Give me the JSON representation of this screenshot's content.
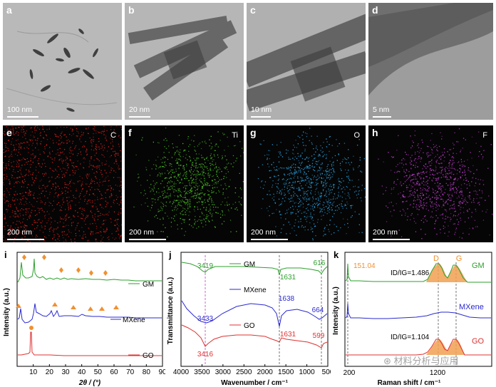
{
  "panels_top": [
    {
      "label": "a",
      "scale": "100 nm"
    },
    {
      "label": "b",
      "scale": "20 nm"
    },
    {
      "label": "c",
      "scale": "10 nm"
    },
    {
      "label": "d",
      "scale": "5 nm"
    }
  ],
  "panels_map": [
    {
      "label": "e",
      "element": "C",
      "scale": "200 nm",
      "color": "#e0201c"
    },
    {
      "label": "f",
      "element": "Ti",
      "scale": "200 nm",
      "color": "#4ecb25"
    },
    {
      "label": "g",
      "element": "O",
      "scale": "200 nm",
      "color": "#2aa6e6"
    },
    {
      "label": "h",
      "element": "F",
      "scale": "200 nm",
      "color": "#c23ad0"
    }
  ],
  "chart_data": [
    {
      "type": "line",
      "label": "i",
      "xlabel": "2θ / (°)",
      "ylabel": "Intensity (a.u.)",
      "xlim": [
        0,
        90
      ],
      "xticks": [
        "10",
        "20",
        "30",
        "40",
        "50",
        "60",
        "70",
        "80",
        "90"
      ],
      "series": [
        {
          "name": "GM",
          "color": "#2ca02c"
        },
        {
          "name": "MXene",
          "color": "#2a2ad0"
        },
        {
          "name": "GO",
          "color": "#e03030"
        }
      ]
    },
    {
      "type": "line",
      "label": "j",
      "xlabel": "Wavenumber / cm⁻¹",
      "ylabel": "Transmittance (a.u.)",
      "xlim": [
        4000,
        500
      ],
      "xticks": [
        "4000",
        "3500",
        "3000",
        "2500",
        "2000",
        "1500",
        "1000",
        "500"
      ],
      "series": [
        {
          "name": "GM",
          "color": "#2ca02c",
          "annotations": [
            "3419",
            "1631",
            "616"
          ]
        },
        {
          "name": "MXene",
          "color": "#2a2ad0",
          "annotations": [
            "3433",
            "1638",
            "664"
          ]
        },
        {
          "name": "GO",
          "color": "#e03030",
          "annotations": [
            "3416",
            "1631",
            "599"
          ]
        }
      ]
    },
    {
      "type": "line",
      "label": "k",
      "xlabel": "Raman shift / cm⁻¹",
      "ylabel": "Intensity (a.u.)",
      "xticks": [
        "200",
        "1200"
      ],
      "peak_labels": [
        "D",
        "G"
      ],
      "annotation": "151.04",
      "ratios": {
        "GM": "ID/IG=1.486",
        "GO": "ID/IG=1.104"
      },
      "series": [
        {
          "name": "GM",
          "color": "#2ca02c"
        },
        {
          "name": "MXene",
          "color": "#2a2ad0"
        },
        {
          "name": "GO",
          "color": "#e03030"
        }
      ]
    }
  ],
  "watermark": "材料分析与应用"
}
